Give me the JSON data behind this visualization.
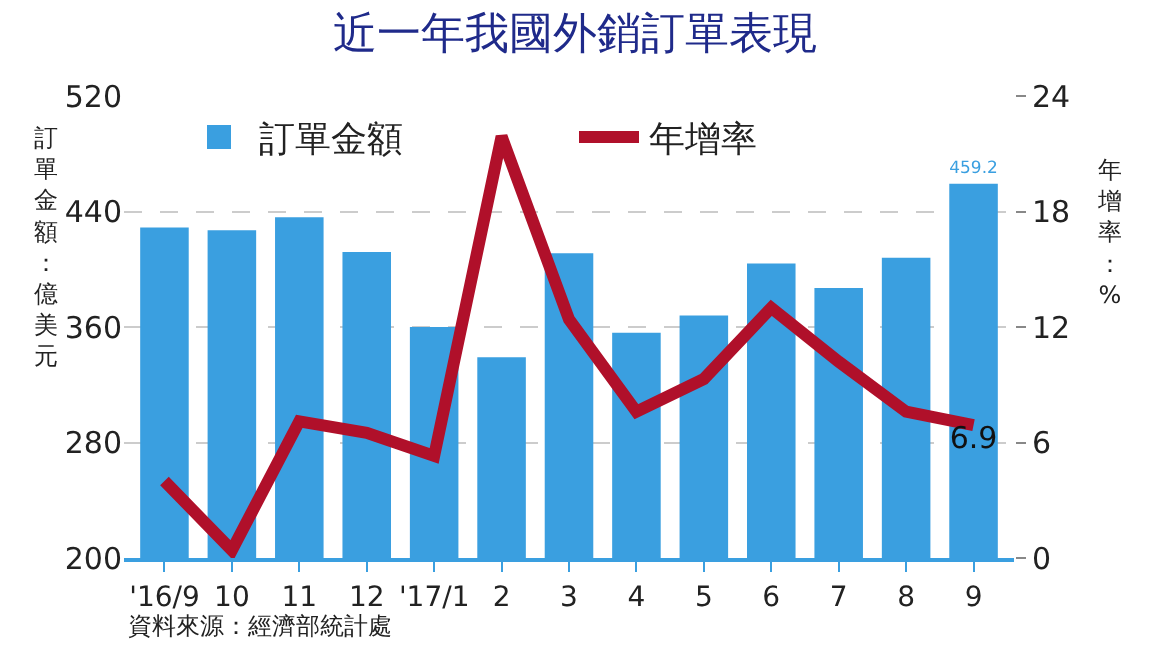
{
  "chart_data": {
    "type": "bar",
    "title": "近一年我國外銷訂單表現",
    "categories": [
      "'16/9",
      "10",
      "11",
      "12",
      "'17/1",
      "2",
      "3",
      "4",
      "5",
      "6",
      "7",
      "8",
      "9"
    ],
    "series": [
      {
        "name": "訂單金額",
        "color": "#3a9fe0",
        "values": [
          429,
          427,
          436,
          412,
          360,
          339,
          411,
          356,
          368,
          404,
          387,
          408,
          459.2
        ],
        "value_labels": [
          null,
          null,
          null,
          null,
          null,
          null,
          null,
          null,
          null,
          null,
          null,
          null,
          "459.2"
        ]
      },
      {
        "name": "年增率",
        "type": "line",
        "axis": "y2",
        "color": "#b0102a",
        "values": [
          4.0,
          0.4,
          7.1,
          6.5,
          5.3,
          21.9,
          12.4,
          7.6,
          9.3,
          13.0,
          10.2,
          7.6,
          6.9
        ],
        "value_labels": [
          null,
          null,
          null,
          null,
          null,
          null,
          null,
          null,
          null,
          null,
          null,
          null,
          "6.9"
        ]
      }
    ],
    "ylabel": "訂單金額：億美元",
    "y2label": "年增率：%",
    "ylim": [
      200,
      520
    ],
    "yticks": [
      200,
      280,
      360,
      440,
      520
    ],
    "y2lim": [
      0,
      24
    ],
    "y2ticks": [
      0,
      6,
      12,
      18,
      24
    ],
    "grid": "y",
    "legend": "top",
    "marker": "none",
    "line_style": "solid",
    "annotations": [
      "資料來源：經濟部統計處"
    ]
  }
}
